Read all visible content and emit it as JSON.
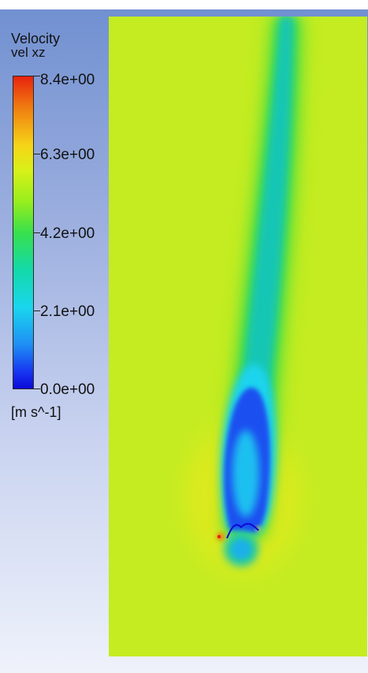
{
  "legend": {
    "title": "Velocity",
    "subtitle": "vel xz",
    "units": "[m s^-1]",
    "ticks": [
      "8.4e+00",
      "6.3e+00",
      "4.2e+00",
      "2.1e+00",
      "0.0e+00"
    ]
  },
  "colors": {
    "max": "#e8220e",
    "high": "#f6d418",
    "freestream": "#c4ec21",
    "mid": "#38e04c",
    "low_mid": "#1ad6ee",
    "min": "#0b0ad6",
    "background_top": "#6f8fd0",
    "background_bottom": "#eff2fb"
  }
}
